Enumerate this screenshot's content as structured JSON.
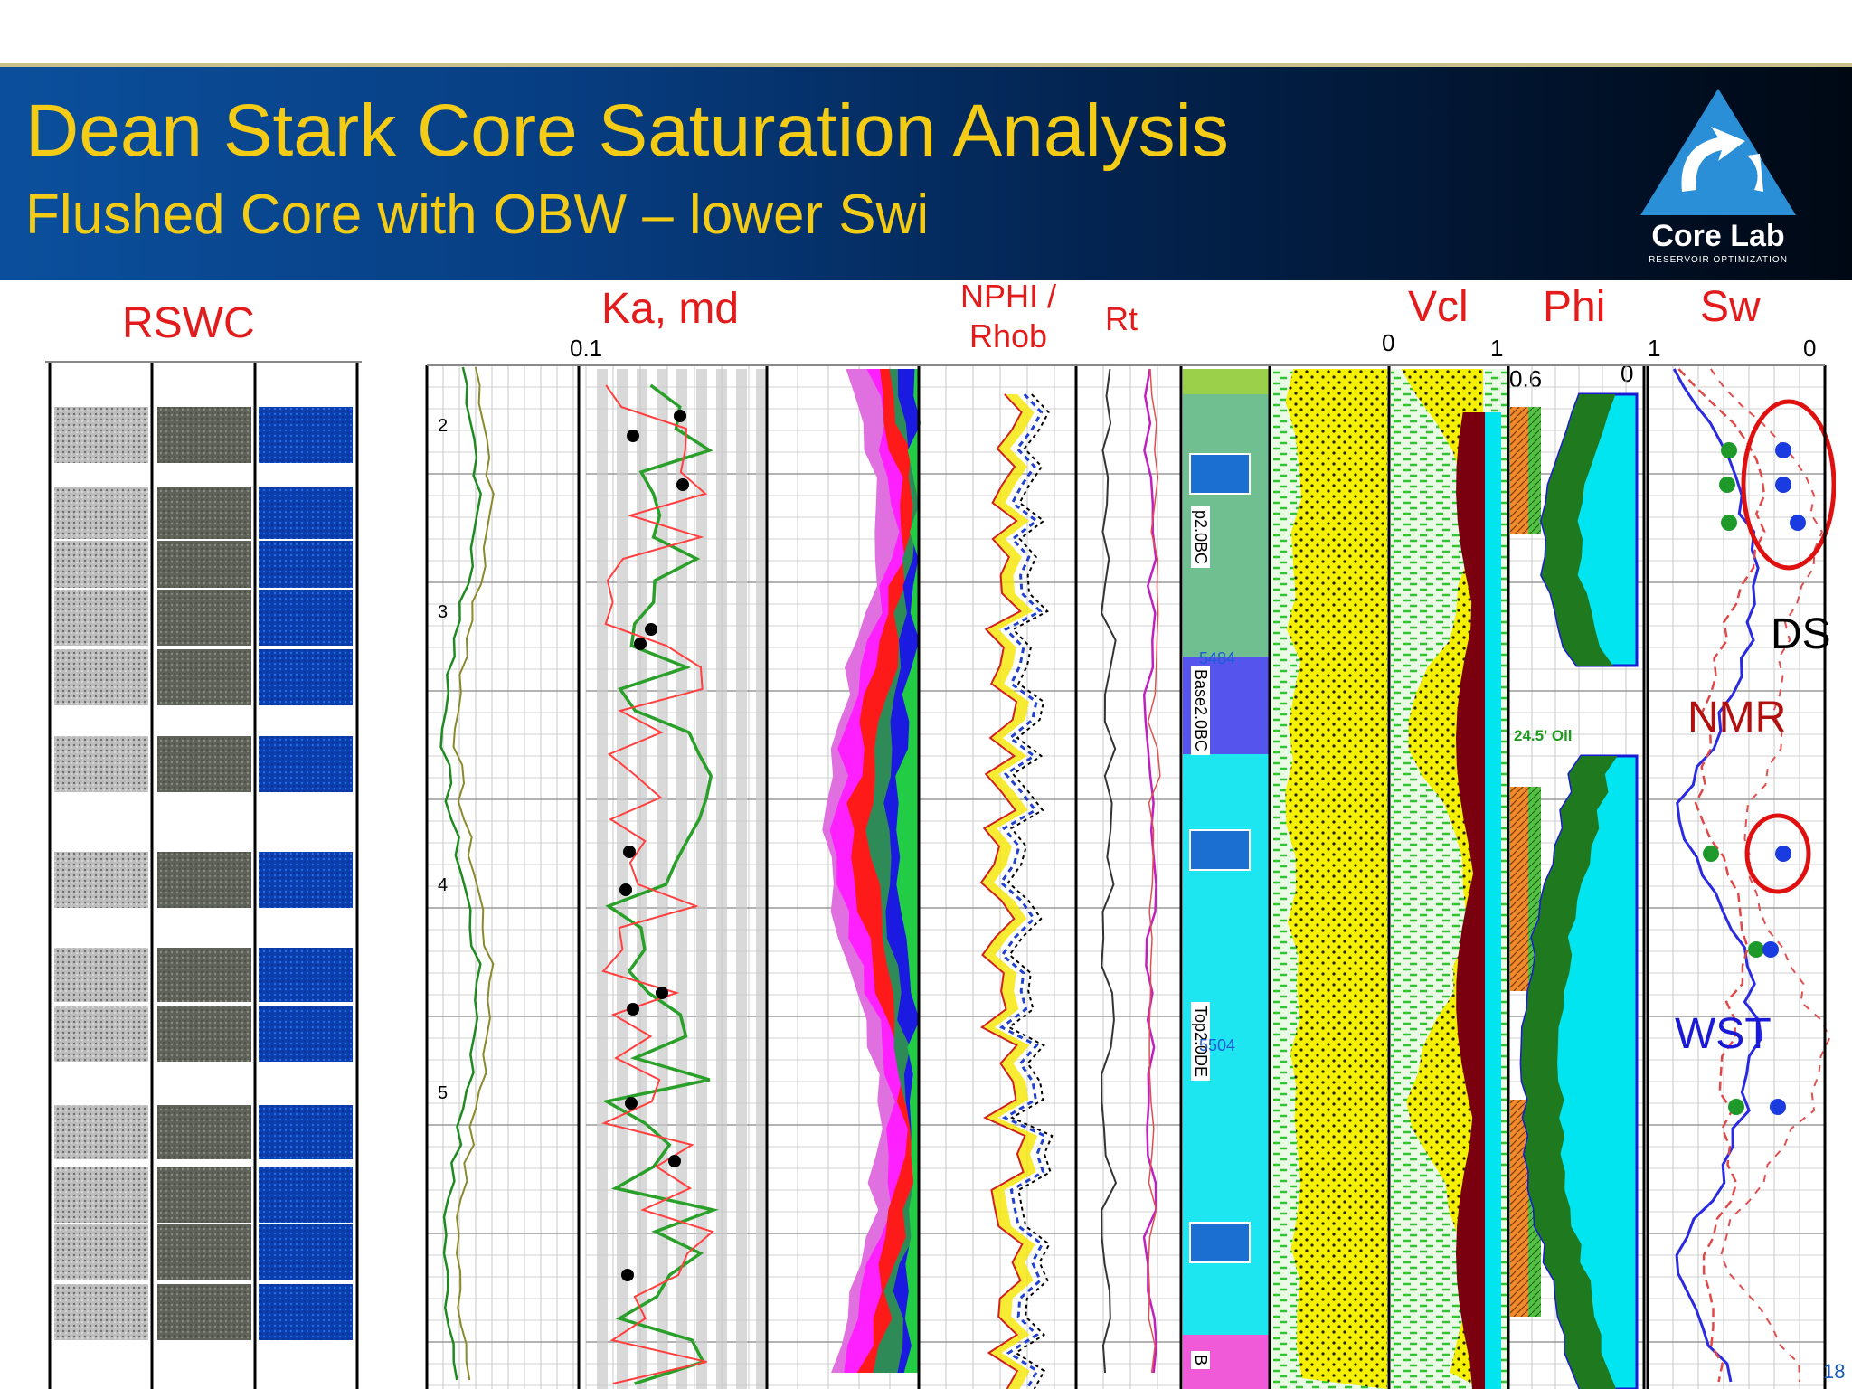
{
  "header": {
    "title": "Dean Stark Core Saturation Analysis",
    "subtitle": "Flushed Core with OBW – lower Swi",
    "logo": {
      "brand": "Core Lab",
      "tagline": "RESERVOIR OPTIMIZATION",
      "icon": "corelab-triangle-icon"
    }
  },
  "panel_labels": {
    "rswc": "RSWC",
    "ka": "Ka, md",
    "nphi_rhob": "NPHI /\nRhob",
    "rt": "Rt",
    "vcl": "Vcl",
    "phi": "Phi",
    "sw": "Sw"
  },
  "scale_labels": {
    "ka_min": "0.1",
    "vcl_min": "0",
    "vcl_max": "1",
    "phi_max": "0.6",
    "phi_min": "0",
    "sw_max": "1",
    "sw_min": "0"
  },
  "depth_ticks": [
    "2",
    "3",
    "4",
    "5"
  ],
  "zone_labels": {
    "top": "p2.0BC",
    "base": "Base2.0BC",
    "lower": "Top2.0DE",
    "bottom": "B",
    "depth_a": "5484",
    "depth_b": "5504"
  },
  "oil_note": "24.5' Oil",
  "annotations": {
    "ds": "DS",
    "nmr": "NMR",
    "wst": "WST"
  },
  "page_number": "18",
  "colors": {
    "title": "#f4cc16",
    "panel_label": "#e31b1b",
    "ds": "#000000",
    "nmr": "#b01010",
    "wst": "#1a1ad6",
    "sand": "#f5f000",
    "shale": "#33c233",
    "water": "#00e5f0",
    "porosity": "#1f7a1f"
  }
}
